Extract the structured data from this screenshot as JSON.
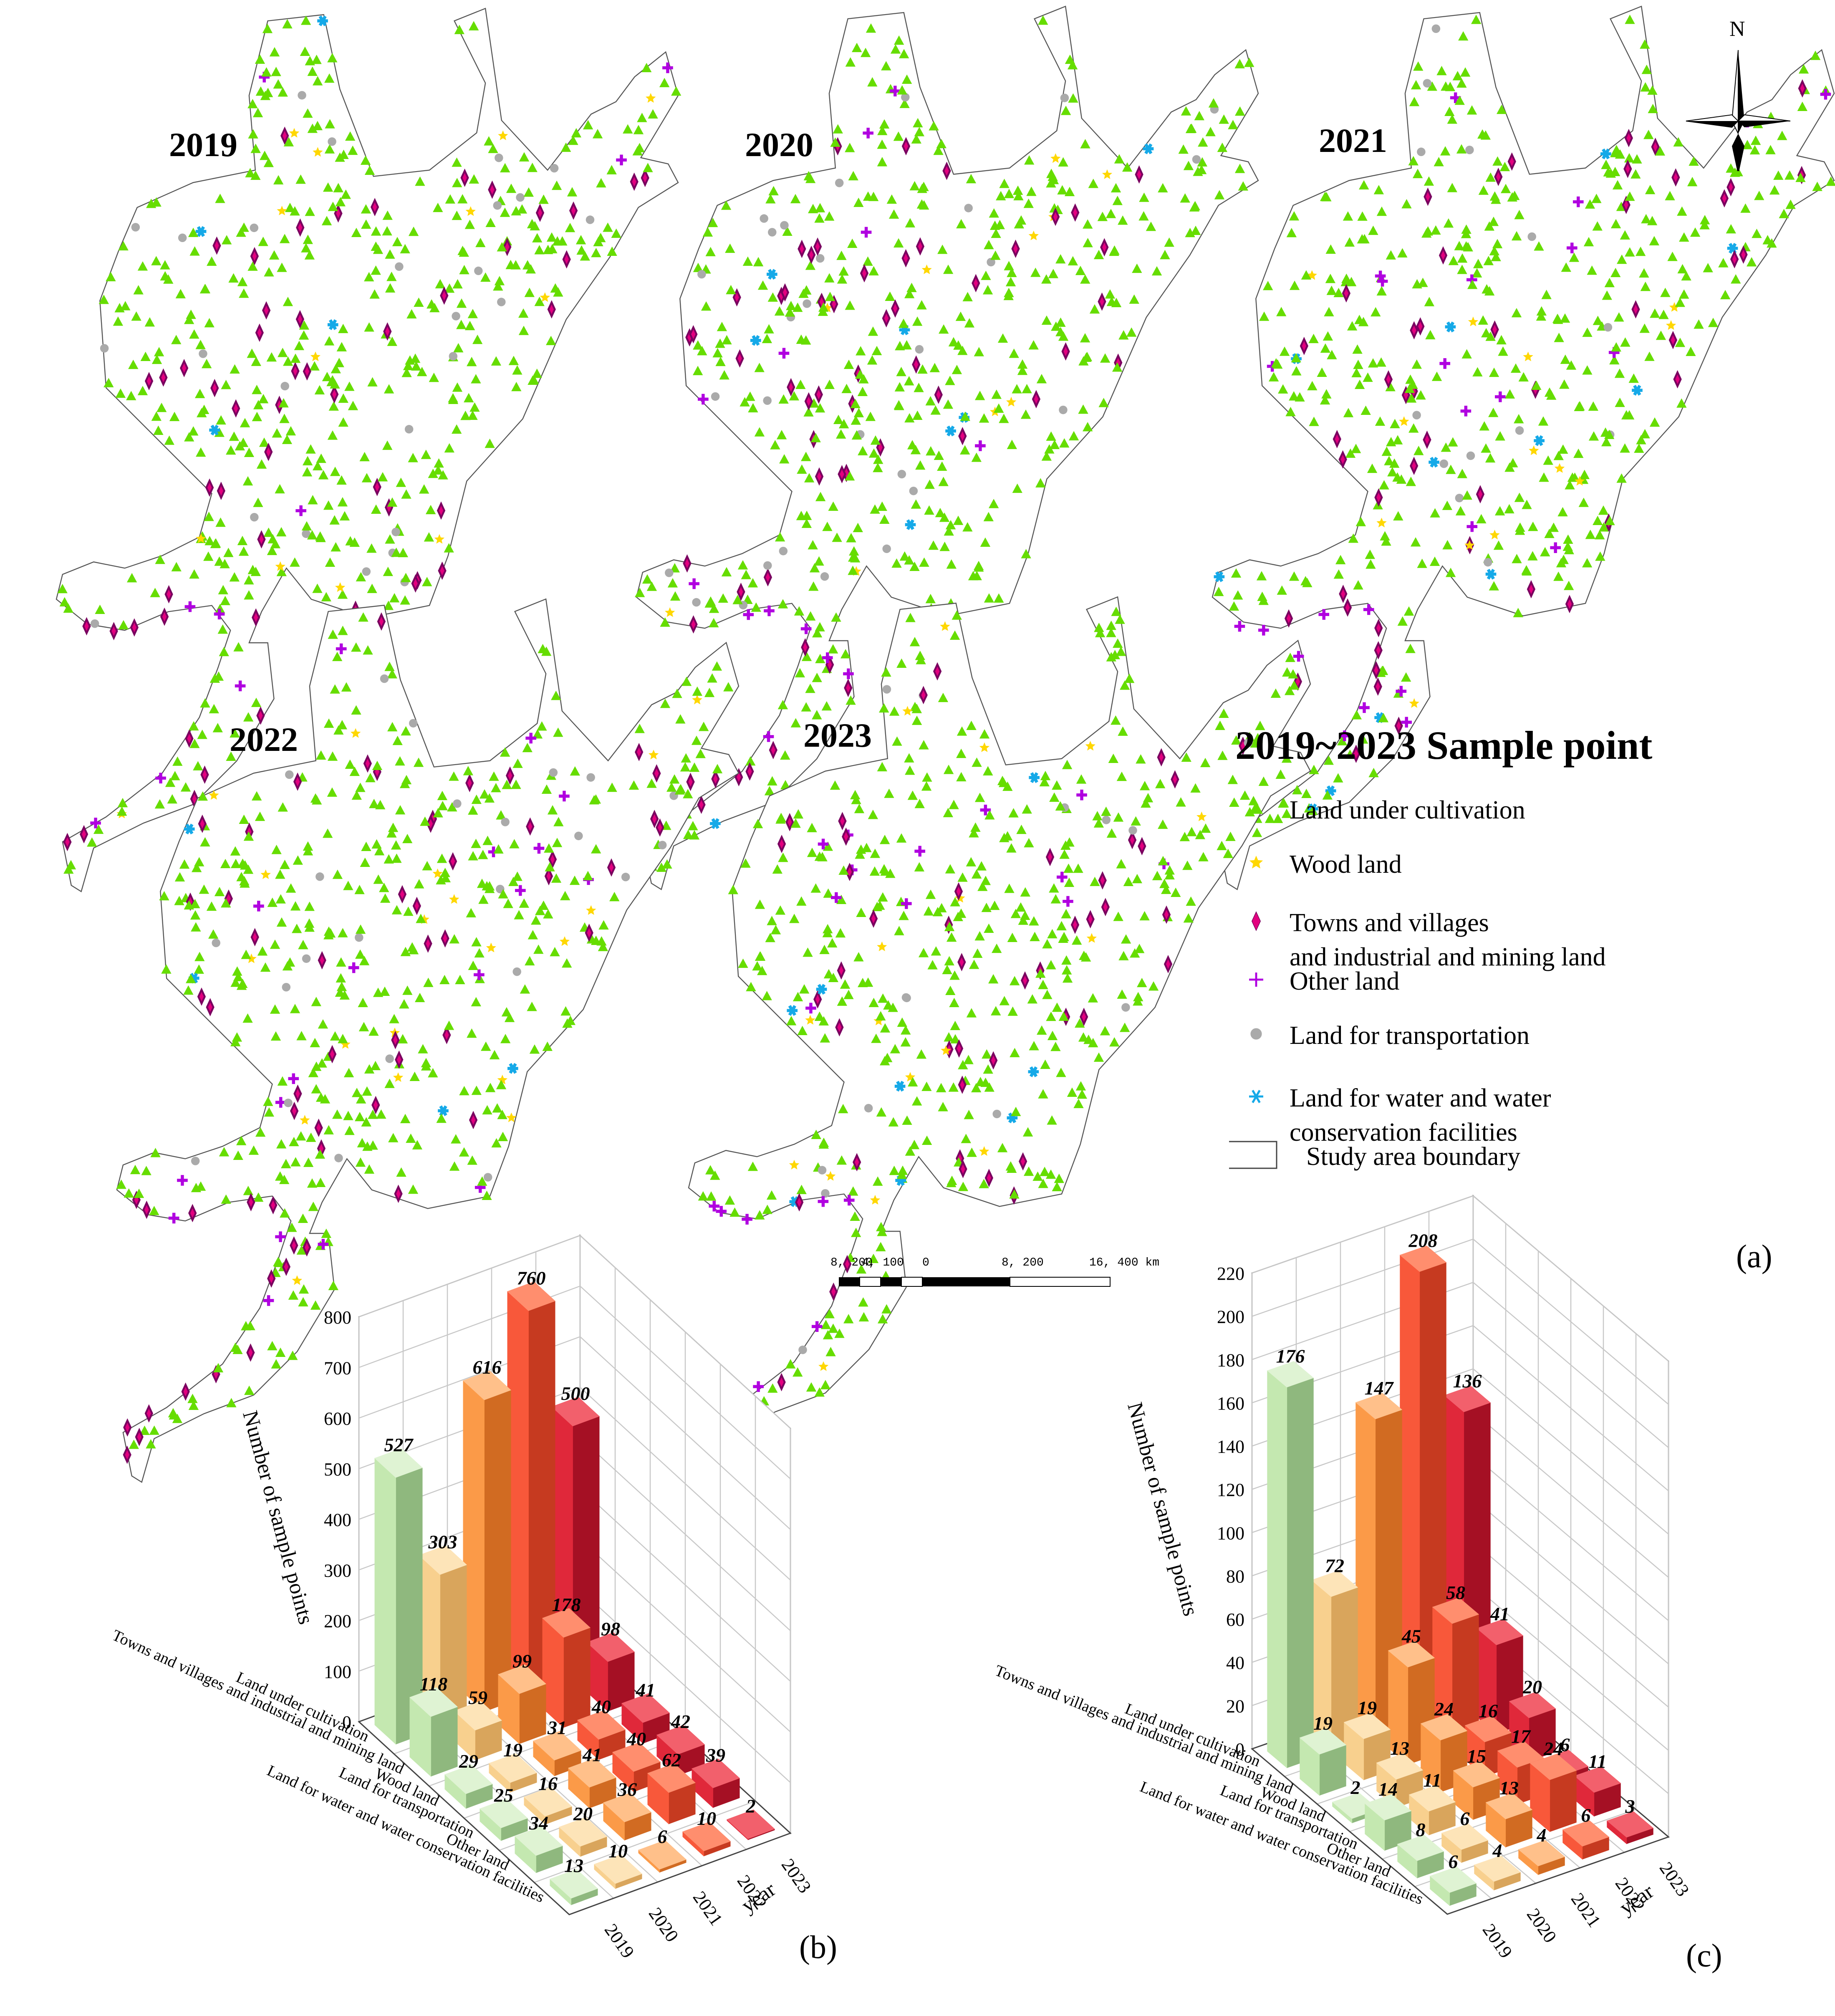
{
  "colors": {
    "cultivation": "#66dd00",
    "wood": "#ffd700",
    "towns": "#e3007f",
    "towns_edge": "#7a0060",
    "other": "#b000e0",
    "transport": "#aaaaaa",
    "water": "#15a9e8",
    "boundary": "#555555"
  },
  "map": {
    "years": [
      "2019",
      "2020",
      "2021",
      "2022",
      "2023"
    ],
    "legend_title": "2019~2023 Sample point",
    "legend_items": [
      {
        "label": "Land under cultivation",
        "icon": "triangle-icon"
      },
      {
        "label": "Wood land",
        "icon": "star-icon"
      },
      {
        "label": "Towns and villages\nand industrial and mining land",
        "icon": "diamond-icon"
      },
      {
        "label": "Other land",
        "icon": "plus-icon"
      },
      {
        "label": "Land for transportation",
        "icon": "dot-icon"
      },
      {
        "label": "Land for water and water\nconservation facilities",
        "icon": "asterisk-icon"
      },
      {
        "label": "Study area boundary",
        "icon": "rectangle-icon"
      }
    ],
    "north_label": "N",
    "scale_labels": [
      "8, 200",
      "4, 100",
      "0",
      "8, 200",
      "16, 400 km"
    ],
    "panel_label": "(a)"
  },
  "chart_data": [
    {
      "type": "bar3d",
      "panel_label": "(b)",
      "ylabel": "Number of sample points",
      "xlabel": "year",
      "zlim": [
        0,
        800
      ],
      "z_ticks": [
        0,
        100,
        200,
        300,
        400,
        500,
        600,
        700,
        800
      ],
      "years": [
        "2019",
        "2020",
        "2021",
        "2022",
        "2023"
      ],
      "categories": [
        "Land under cultivation",
        "Towns and villages and industrial and mining land",
        "Wood land",
        "Land for transportation",
        "Other land",
        "Land for water and water conservation facilities"
      ],
      "values": [
        [
          527,
          303,
          616,
          760,
          500
        ],
        [
          118,
          59,
          99,
          178,
          98
        ],
        [
          29,
          19,
          31,
          40,
          41
        ],
        [
          25,
          16,
          41,
          40,
          42
        ],
        [
          34,
          20,
          36,
          62,
          39
        ],
        [
          13,
          10,
          6,
          10,
          2
        ]
      ]
    },
    {
      "type": "bar3d",
      "panel_label": "(c)",
      "ylabel": "Number of sample points",
      "xlabel": "year",
      "zlim": [
        0,
        220
      ],
      "z_ticks": [
        0,
        20,
        40,
        60,
        80,
        100,
        120,
        140,
        160,
        180,
        200,
        220
      ],
      "years": [
        "2019",
        "2020",
        "2021",
        "2022",
        "2023"
      ],
      "categories": [
        "Land under cultivation",
        "Towns and villages and industrial and mining land",
        "Wood land",
        "Land for transportation",
        "Other land",
        "Land for water and water conservation facilities"
      ],
      "values": [
        [
          176,
          72,
          147,
          208,
          136
        ],
        [
          19,
          19,
          45,
          58,
          41
        ],
        [
          2,
          13,
          24,
          16,
          20
        ],
        [
          14,
          11,
          15,
          17,
          6
        ],
        [
          8,
          6,
          13,
          24,
          11
        ],
        [
          6,
          4,
          4,
          6,
          3
        ]
      ]
    }
  ],
  "bar_colors": [
    {
      "front": "#c4e8b0",
      "side": "#8fb87e",
      "top": "#dff3d3"
    },
    {
      "front": "#f8d08e",
      "side": "#d9a55c",
      "top": "#fde4b8"
    },
    {
      "front": "#fb9a48",
      "side": "#d16b22",
      "top": "#ffc08a"
    },
    {
      "front": "#f8583a",
      "side": "#c63a20",
      "top": "#ff8e6e"
    },
    {
      "front": "#e0283a",
      "side": "#a51024",
      "top": "#f2606c"
    }
  ]
}
